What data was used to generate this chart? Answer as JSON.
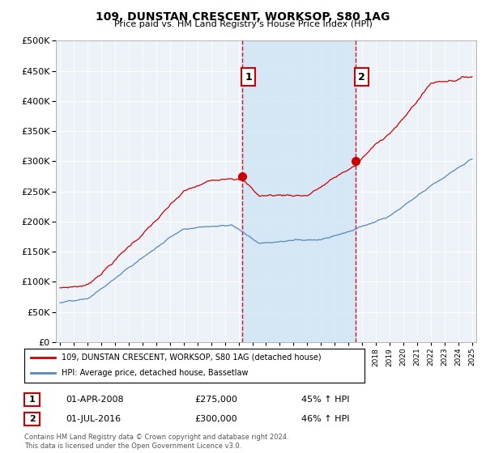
{
  "title": "109, DUNSTAN CRESCENT, WORKSOP, S80 1AG",
  "subtitle": "Price paid vs. HM Land Registry's House Price Index (HPI)",
  "legend_line1": "109, DUNSTAN CRESCENT, WORKSOP, S80 1AG (detached house)",
  "legend_line2": "HPI: Average price, detached house, Bassetlaw",
  "annotation1_date": "01-APR-2008",
  "annotation1_price": "£275,000",
  "annotation1_hpi": "45% ↑ HPI",
  "annotation2_date": "01-JUL-2016",
  "annotation2_price": "£300,000",
  "annotation2_hpi": "46% ↑ HPI",
  "footer": "Contains HM Land Registry data © Crown copyright and database right 2024.\nThis data is licensed under the Open Government Licence v3.0.",
  "red_color": "#cc0000",
  "blue_color": "#5588bb",
  "vline_color": "#cc0000",
  "shade_color": "#d0e4f5",
  "background_color": "#ffffff",
  "plot_bg_color": "#edf2f9",
  "grid_color": "#ffffff",
  "ylim": [
    0,
    500000
  ],
  "yticks": [
    0,
    50000,
    100000,
    150000,
    200000,
    250000,
    300000,
    350000,
    400000,
    450000,
    500000
  ],
  "sale1_x": 2008.25,
  "sale1_y": 275000,
  "sale2_x": 2016.5,
  "sale2_y": 300000,
  "xmin": 1995,
  "xmax": 2025
}
